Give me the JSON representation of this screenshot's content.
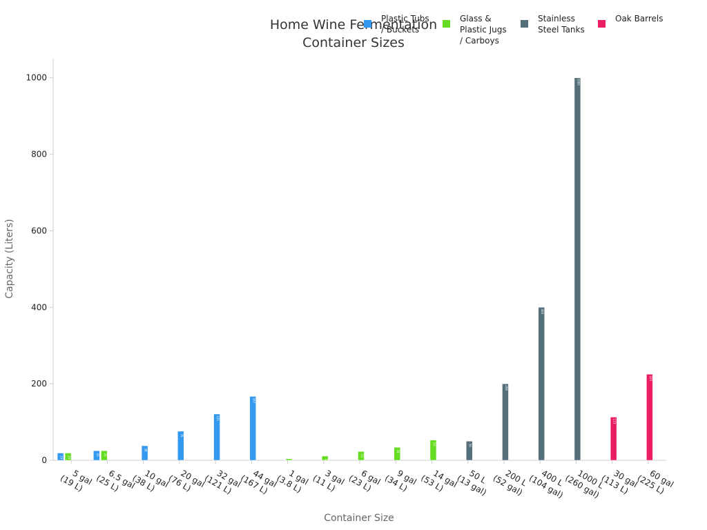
{
  "chart_data": {
    "type": "bar",
    "title_lines": [
      "Home Wine Fermentation",
      "Container Sizes"
    ],
    "xlabel": "Container Size",
    "ylabel": "Capacity (Liters)",
    "ylim": [
      0,
      1050
    ],
    "yticks": [
      0,
      200,
      400,
      600,
      800,
      1000
    ],
    "grid": false,
    "legend_position": "top-right",
    "categories": [
      [
        "5 gal",
        "(19 L)"
      ],
      [
        "6.5 gal",
        "(25 L)"
      ],
      [
        "10 gal",
        "(38 L)"
      ],
      [
        "20 gal",
        "(76 L)"
      ],
      [
        "32 gal",
        "(121 L)"
      ],
      [
        "44 gal",
        "(167 L)"
      ],
      [
        "1 gal",
        "(3.8 L)"
      ],
      [
        "3 gal",
        "(11 L)"
      ],
      [
        "6 gal",
        "(23 L)"
      ],
      [
        "9 gal",
        "(34 L)"
      ],
      [
        "14 gal",
        "(53 L)"
      ],
      [
        "50 L",
        "(13 gal)"
      ],
      [
        "200 L",
        "(52 gal)"
      ],
      [
        "400 L",
        "(104 gal)"
      ],
      [
        "1000 L",
        "(260 gal)"
      ],
      [
        "30 gal",
        "(113 L)"
      ],
      [
        "60 gal",
        "(225 L)"
      ]
    ],
    "series": [
      {
        "name_lines": [
          "Plastic Tubs",
          "/ Buckets"
        ],
        "color": "#3399ee",
        "values": [
          19,
          25,
          38,
          76,
          121,
          167,
          null,
          null,
          null,
          null,
          null,
          null,
          null,
          null,
          null,
          null,
          null
        ]
      },
      {
        "name_lines": [
          "Glass &",
          "Plastic Jugs",
          "/ Carboys"
        ],
        "color": "#66dd22",
        "values": [
          19,
          25,
          null,
          null,
          null,
          null,
          3.8,
          11,
          23,
          34,
          53,
          null,
          null,
          null,
          null,
          null,
          null
        ]
      },
      {
        "name_lines": [
          "Stainless",
          "Steel Tanks"
        ],
        "color": "#546e7a",
        "values": [
          null,
          null,
          null,
          null,
          null,
          null,
          null,
          null,
          null,
          null,
          null,
          50,
          200,
          400,
          1000,
          null,
          null
        ]
      },
      {
        "name_lines": [
          "Oak Barrels"
        ],
        "color": "#e91e63",
        "values": [
          null,
          null,
          null,
          null,
          null,
          null,
          null,
          null,
          null,
          null,
          null,
          null,
          null,
          null,
          null,
          113,
          225
        ]
      }
    ]
  }
}
